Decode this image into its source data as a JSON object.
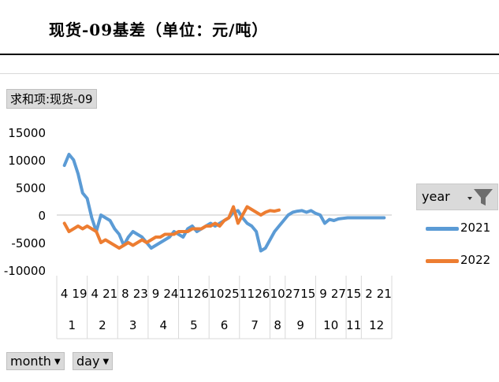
{
  "title": "现货-09基差（单位：元/吨）",
  "field_button": "求和项:现货-09",
  "legend": {
    "header": "year",
    "filter_icon": "filter-icon",
    "items": [
      {
        "label": "2021",
        "color": "#5b9bd5"
      },
      {
        "label": "2022",
        "color": "#ed7d31"
      }
    ]
  },
  "bottom_buttons": [
    {
      "label": "month",
      "icon": "dropdown-arrow-icon"
    },
    {
      "label": "day",
      "icon": "dropdown-arrow-icon"
    }
  ],
  "chart_data": {
    "type": "line",
    "ylim": [
      -10000,
      15000
    ],
    "yticks": [
      "15000",
      "10000",
      "5000",
      "0",
      "-5000",
      "-10000"
    ],
    "x_day_labels": [
      "4",
      "19",
      "4",
      "21",
      "8",
      "23",
      "9",
      "24",
      "11",
      "26",
      "10",
      "25",
      "11",
      "26",
      "10",
      "27",
      "15",
      "9",
      "27",
      "15",
      "2",
      "21"
    ],
    "months": [
      "1",
      "2",
      "3",
      "4",
      "5",
      "6",
      "7",
      "8",
      "9",
      "10",
      "11",
      "12"
    ],
    "month_spans": [
      [
        1,
        2
      ],
      [
        3,
        4
      ],
      [
        5,
        6
      ],
      [
        7,
        8
      ],
      [
        9,
        10
      ],
      [
        11,
        12
      ],
      [
        13,
        14
      ],
      [
        15,
        15
      ],
      [
        16,
        17
      ],
      [
        18,
        19
      ],
      [
        20,
        20
      ],
      [
        21,
        22
      ]
    ],
    "x_range": [
      1,
      22
    ],
    "series": [
      {
        "name": "2021",
        "color": "#5b9bd5",
        "x": [
          1.0,
          1.3,
          1.6,
          1.9,
          2.2,
          2.5,
          2.8,
          3.1,
          3.4,
          3.7,
          4.0,
          4.3,
          4.6,
          4.9,
          5.2,
          5.5,
          5.8,
          6.1,
          6.4,
          6.7,
          7.0,
          7.3,
          7.6,
          7.9,
          8.2,
          8.5,
          8.8,
          9.1,
          9.4,
          9.7,
          10.0,
          10.3,
          10.6,
          10.9,
          11.2,
          11.5,
          11.8,
          12.1,
          12.4,
          12.7,
          13.0,
          13.3,
          13.6,
          13.9,
          14.2,
          14.5,
          14.8,
          15.1,
          15.4,
          15.7,
          16.0,
          16.3,
          16.6,
          16.9,
          17.2,
          17.5,
          17.8,
          18.1,
          18.4,
          18.7,
          19.0,
          19.3,
          19.6,
          19.9,
          20.2,
          20.5,
          20.8,
          21.1,
          21.4,
          21.7,
          22.0
        ],
        "values": [
          9000,
          11000,
          10000,
          7500,
          4000,
          3000,
          -500,
          -3000,
          0,
          -500,
          -1000,
          -2500,
          -3500,
          -5500,
          -4000,
          -3000,
          -3500,
          -4000,
          -5000,
          -6000,
          -5500,
          -5000,
          -4500,
          -4000,
          -3000,
          -3500,
          -4000,
          -2500,
          -2000,
          -3000,
          -2500,
          -2000,
          -1500,
          -2000,
          -1500,
          -1000,
          -500,
          500,
          800,
          -500,
          -1500,
          -2000,
          -3000,
          -6500,
          -6000,
          -4500,
          -3000,
          -2000,
          -1000,
          0,
          500,
          700,
          800,
          500,
          800,
          300,
          0,
          -1500,
          -800,
          -1000,
          -700,
          -600,
          -500,
          -500,
          -500,
          -500,
          -500,
          -500,
          -500,
          -500,
          -500
        ]
      },
      {
        "name": "2022",
        "color": "#ed7d31",
        "x": [
          1.0,
          1.3,
          1.6,
          1.9,
          2.2,
          2.5,
          2.8,
          3.1,
          3.4,
          3.7,
          4.0,
          4.3,
          4.6,
          4.9,
          5.2,
          5.5,
          5.8,
          6.1,
          6.4,
          6.7,
          7.0,
          7.3,
          7.6,
          7.9,
          8.2,
          8.5,
          8.8,
          9.1,
          9.4,
          9.7,
          10.0,
          10.3,
          10.6,
          10.9,
          11.2,
          11.5,
          11.8,
          12.1,
          12.4,
          12.7,
          13.0,
          13.3,
          13.6,
          13.9,
          14.2,
          14.5,
          14.8,
          15.1
        ],
        "values": [
          -1500,
          -3000,
          -2500,
          -2000,
          -2500,
          -2000,
          -2500,
          -3000,
          -5000,
          -4500,
          -5000,
          -5500,
          -6000,
          -5500,
          -5000,
          -5500,
          -5000,
          -4500,
          -5000,
          -4500,
          -4000,
          -4000,
          -3500,
          -3500,
          -3500,
          -3000,
          -3000,
          -3000,
          -2500,
          -2500,
          -2500,
          -2000,
          -2000,
          -1500,
          -2000,
          -1000,
          -500,
          1500,
          -1500,
          0,
          1500,
          1000,
          500,
          0,
          500,
          800,
          700,
          900
        ]
      }
    ]
  }
}
